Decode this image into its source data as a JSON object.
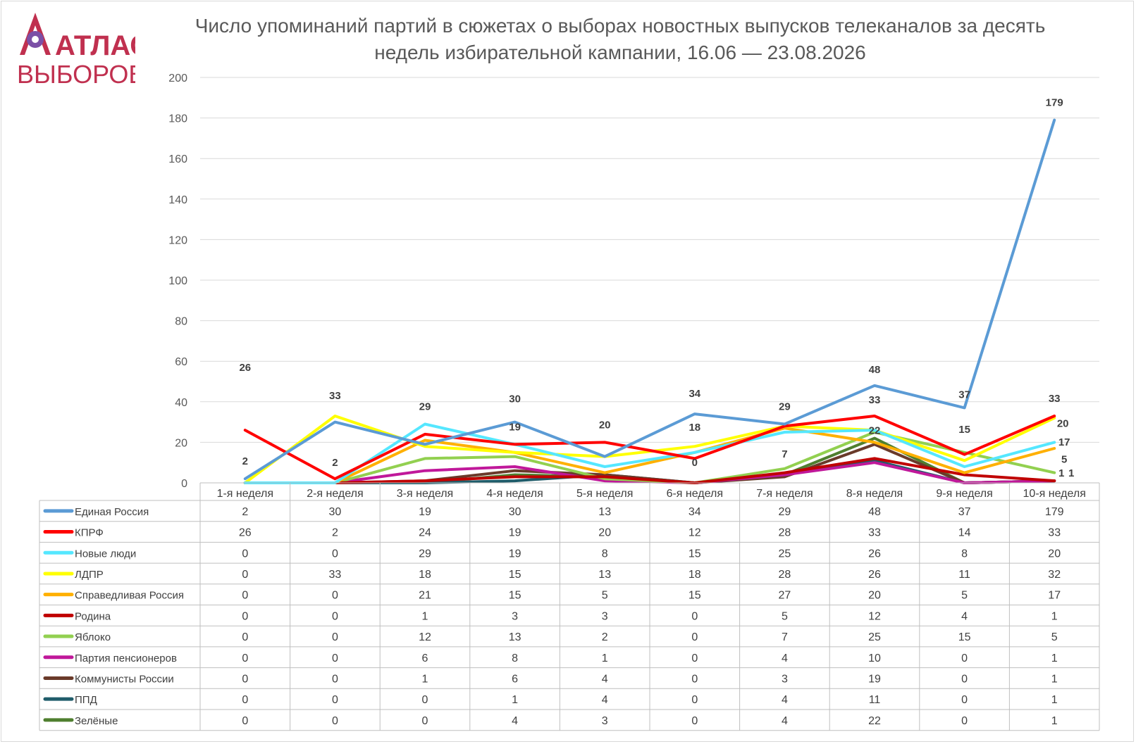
{
  "title": "Число упоминаний партий в сюжетах о выборах новостных выпусков телеканалов за десять недель избирательной кампании, 16.06 — 23.08.2026",
  "logo": {
    "line1": "АТЛАС",
    "line2": "ВЫБОРОВ",
    "color": "#c0304f",
    "accent": "#7b4fa6"
  },
  "chart_data": {
    "type": "line",
    "title": "Число упоминаний партий в сюжетах о выборах новостных выпусков телеканалов за десять недель избирательной кампании, 16.06 — 23.08.2026",
    "categories": [
      "1-я неделя",
      "2-я неделя",
      "3-я неделя",
      "4-я неделя",
      "5-я неделя",
      "6-я неделя",
      "7-я неделя",
      "8-я неделя",
      "9-я неделя",
      "10-я неделя"
    ],
    "ylim": [
      0,
      200
    ],
    "yticks": [
      0,
      20,
      40,
      60,
      80,
      100,
      120,
      140,
      160,
      180,
      200
    ],
    "grid": true,
    "legend": "data-table-below",
    "series": [
      {
        "name": "Единая Россия",
        "color": "#5b9bd5",
        "values": [
          2,
          30,
          19,
          30,
          13,
          34,
          29,
          48,
          37,
          179
        ]
      },
      {
        "name": "КПРФ",
        "color": "#ff0000",
        "values": [
          26,
          2,
          24,
          19,
          20,
          12,
          28,
          33,
          14,
          33
        ]
      },
      {
        "name": "Новые люди",
        "color": "#55e7ff",
        "values": [
          0,
          0,
          29,
          19,
          8,
          15,
          25,
          26,
          8,
          20
        ]
      },
      {
        "name": "ЛДПР",
        "color": "#ffff00",
        "values": [
          0,
          33,
          18,
          15,
          13,
          18,
          28,
          26,
          11,
          32
        ]
      },
      {
        "name": "Справедливая Россия",
        "color": "#ffb000",
        "values": [
          0,
          0,
          21,
          15,
          5,
          15,
          27,
          20,
          5,
          17
        ]
      },
      {
        "name": "Родина",
        "color": "#c00000",
        "values": [
          0,
          0,
          1,
          3,
          3,
          0,
          5,
          12,
          4,
          1
        ]
      },
      {
        "name": "Яблоко",
        "color": "#92d050",
        "values": [
          0,
          0,
          12,
          13,
          2,
          0,
          7,
          25,
          15,
          5
        ]
      },
      {
        "name": "Партия пенсионеров",
        "color": "#c0189a",
        "values": [
          0,
          0,
          6,
          8,
          1,
          0,
          4,
          10,
          0,
          1
        ]
      },
      {
        "name": "Коммунисты России",
        "color": "#6a3a2a",
        "values": [
          0,
          0,
          1,
          6,
          4,
          0,
          3,
          19,
          0,
          1
        ]
      },
      {
        "name": "ППД",
        "color": "#1f5c6a",
        "values": [
          0,
          0,
          0,
          1,
          4,
          0,
          4,
          11,
          0,
          1
        ]
      },
      {
        "name": "Зелёные",
        "color": "#4f7f2f",
        "values": [
          0,
          0,
          0,
          4,
          3,
          0,
          4,
          22,
          0,
          1
        ]
      }
    ],
    "annotations": [
      {
        "text": "26",
        "category": 0,
        "value": 26
      },
      {
        "text": "2",
        "category": 0,
        "value": 2
      },
      {
        "text": "33",
        "category": 1,
        "value": 33
      },
      {
        "text": "2",
        "category": 1,
        "value": 2
      },
      {
        "text": "29",
        "category": 2,
        "value": 29
      },
      {
        "text": "30",
        "category": 3,
        "value": 30
      },
      {
        "text": "19",
        "category": 3,
        "value": 19
      },
      {
        "text": "20",
        "category": 4,
        "value": 20
      },
      {
        "text": "34",
        "category": 5,
        "value": 34
      },
      {
        "text": "18",
        "category": 5,
        "value": 18
      },
      {
        "text": "0",
        "category": 5,
        "value": 0
      },
      {
        "text": "29",
        "category": 6,
        "value": 29
      },
      {
        "text": "7",
        "category": 6,
        "value": 7
      },
      {
        "text": "48",
        "category": 7,
        "value": 48
      },
      {
        "text": "33",
        "category": 7,
        "value": 33
      },
      {
        "text": "22",
        "category": 7,
        "value": 22
      },
      {
        "text": "37",
        "category": 8,
        "value": 37
      },
      {
        "text": "15",
        "category": 8,
        "value": 15
      },
      {
        "text": "179",
        "category": 9,
        "value": 179
      },
      {
        "text": "33",
        "category": 9,
        "value": 33
      },
      {
        "text": "20",
        "category": 9,
        "value": 20
      },
      {
        "text": "17",
        "category": 9,
        "value": 17
      },
      {
        "text": "5",
        "category": 9,
        "value": 5
      },
      {
        "text": "1",
        "category": 9,
        "value": 1
      },
      {
        "text": "1",
        "category": 9,
        "value": 1
      }
    ]
  }
}
